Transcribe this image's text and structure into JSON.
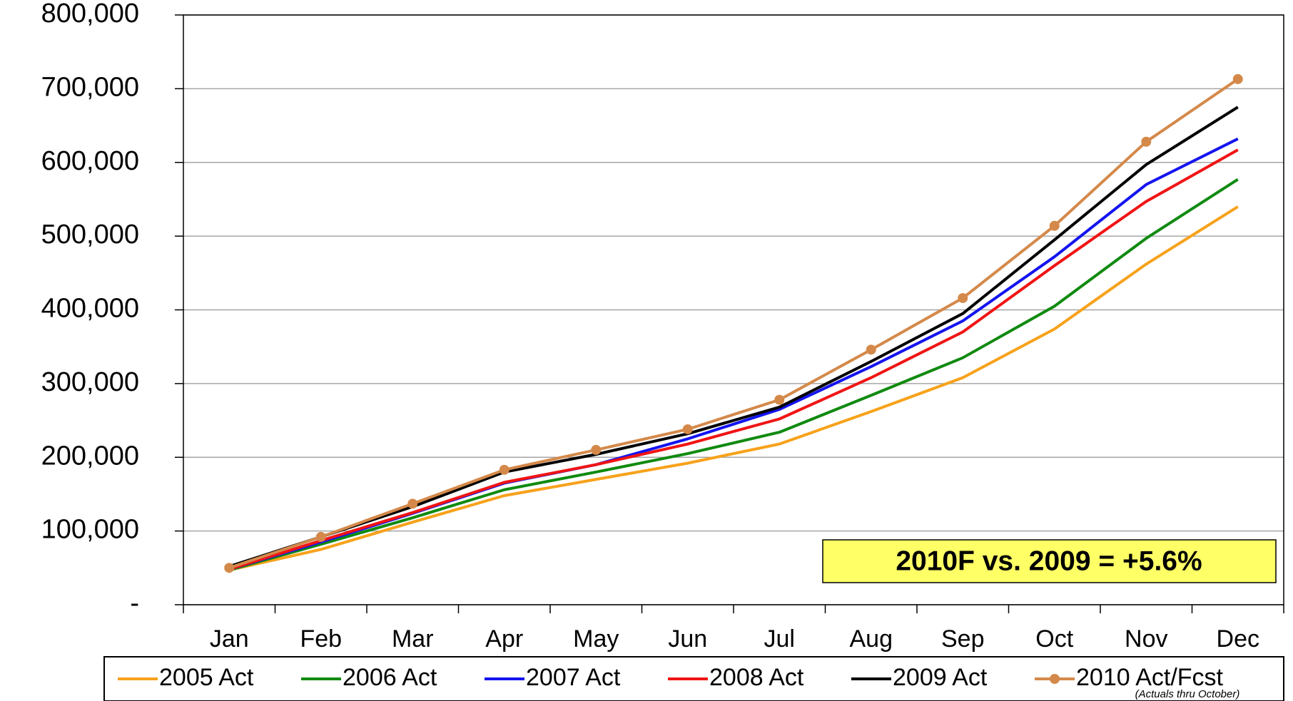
{
  "chart_data": {
    "type": "line",
    "categories": [
      "Jan",
      "Feb",
      "Mar",
      "Apr",
      "May",
      "Jun",
      "Jul",
      "Aug",
      "Sep",
      "Oct",
      "Nov",
      "Dec"
    ],
    "series": [
      {
        "name": "2005 Act",
        "color": "#f7a21b",
        "values": [
          47000,
          75000,
          112000,
          148000,
          170000,
          192000,
          218000,
          262000,
          308000,
          374000,
          462000,
          540000
        ]
      },
      {
        "name": "2006 Act",
        "color": "#108a10",
        "values": [
          47000,
          82000,
          118000,
          156000,
          180000,
          205000,
          234000,
          284000,
          335000,
          405000,
          497000,
          577000
        ]
      },
      {
        "name": "2007 Act",
        "color": "#1414f0",
        "values": [
          48000,
          85000,
          124000,
          165000,
          190000,
          225000,
          265000,
          323000,
          385000,
          472000,
          570000,
          632000
        ]
      },
      {
        "name": "2008 Act",
        "color": "#f01414",
        "values": [
          48000,
          87000,
          125000,
          166000,
          190000,
          218000,
          252000,
          308000,
          370000,
          460000,
          547000,
          617000
        ]
      },
      {
        "name": "2009 Act",
        "color": "#000000",
        "values": [
          52000,
          92000,
          133000,
          180000,
          204000,
          232000,
          268000,
          330000,
          395000,
          495000,
          597000,
          675000
        ]
      },
      {
        "name": "2010 Act/Fcst",
        "color": "#d4894a",
        "marker": true,
        "values": [
          50000,
          92000,
          137000,
          183000,
          210000,
          238000,
          278000,
          346000,
          416000,
          514000,
          628000,
          713000
        ]
      }
    ],
    "ylim": [
      0,
      800000
    ],
    "yticks": [
      {
        "value": 0,
        "label": "-"
      },
      {
        "value": 100000,
        "label": "100,000"
      },
      {
        "value": 200000,
        "label": "200,000"
      },
      {
        "value": 300000,
        "label": "300,000"
      },
      {
        "value": 400000,
        "label": "400,000"
      },
      {
        "value": 500000,
        "label": "500,000"
      },
      {
        "value": 600000,
        "label": "600,000"
      },
      {
        "value": 700000,
        "label": "700,000"
      },
      {
        "value": 800000,
        "label": "800,000"
      }
    ],
    "grid": true,
    "annotation": "2010F vs. 2009 = +5.6%",
    "note": "(Actuals thru  October)"
  }
}
